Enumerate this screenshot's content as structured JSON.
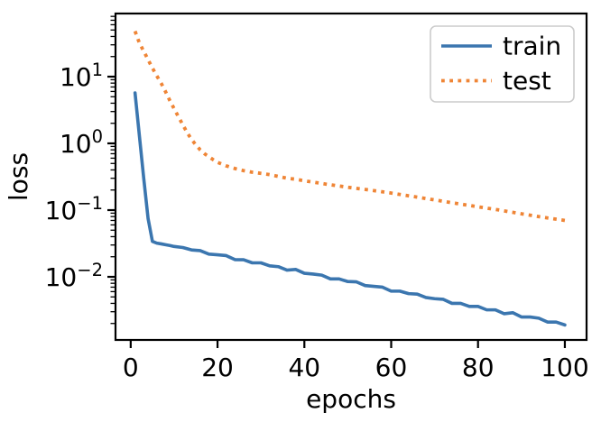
{
  "chart_data": {
    "type": "line",
    "title": "",
    "xlabel": "epochs",
    "ylabel": "loss",
    "y_scale": "log",
    "xlim": [
      -3.5,
      105
    ],
    "ylim_log10": [
      -2.946,
      1.946
    ],
    "grid": false,
    "x_tick_values": [
      0,
      20,
      40,
      60,
      80,
      100
    ],
    "y_ticks": [
      {
        "value": 10,
        "base": "10",
        "exp": "1"
      },
      {
        "value": 1,
        "base": "10",
        "exp": "0"
      },
      {
        "value": 0.1,
        "base": "10",
        "exp": "−1"
      },
      {
        "value": 0.01,
        "base": "10",
        "exp": "−2"
      }
    ],
    "legend_position": "upper right",
    "legend": [
      {
        "label": "train",
        "color": "#3b76af",
        "linestyle": "solid"
      },
      {
        "label": "test",
        "color": "#ef8536",
        "linestyle": "dotted"
      }
    ],
    "series": [
      {
        "name": "train",
        "color": "#3b76af",
        "linestyle": "solid",
        "x": [
          1,
          2,
          3,
          4,
          5,
          6,
          7,
          8,
          9,
          10,
          12,
          14,
          16,
          18,
          20,
          22,
          24,
          26,
          28,
          30,
          32,
          34,
          36,
          38,
          40,
          42,
          44,
          46,
          48,
          50,
          52,
          54,
          56,
          58,
          60,
          62,
          64,
          66,
          68,
          70,
          72,
          74,
          76,
          78,
          80,
          82,
          84,
          86,
          88,
          90,
          92,
          94,
          96,
          98,
          100
        ],
        "y": [
          5.7,
          1.3,
          0.3,
          0.075,
          0.034,
          0.032,
          0.0312,
          0.0303,
          0.0295,
          0.0285,
          0.0275,
          0.0253,
          0.0247,
          0.0219,
          0.0214,
          0.0208,
          0.0181,
          0.018,
          0.0162,
          0.0162,
          0.0146,
          0.0142,
          0.0126,
          0.0129,
          0.0113,
          0.011,
          0.0106,
          0.0093,
          0.0093,
          0.0085,
          0.0084,
          0.0074,
          0.0072,
          0.007,
          0.0061,
          0.0061,
          0.0056,
          0.0055,
          0.0049,
          0.0047,
          0.0046,
          0.004,
          0.004,
          0.0036,
          0.0036,
          0.0032,
          0.0032,
          0.0028,
          0.0029,
          0.0025,
          0.0025,
          0.0024,
          0.0021,
          0.0021,
          0.0019
        ]
      },
      {
        "name": "test",
        "color": "#ef8536",
        "linestyle": "dotted",
        "x": [
          1,
          2,
          3,
          4,
          5,
          6,
          7,
          8,
          9,
          10,
          11,
          12,
          13,
          14,
          15,
          16,
          17,
          18,
          19,
          20,
          22,
          24,
          26,
          28,
          30,
          32,
          34,
          36,
          38,
          40,
          45,
          50,
          55,
          60,
          65,
          70,
          75,
          80,
          85,
          90,
          95,
          100
        ],
        "y": [
          48,
          32,
          24,
          18,
          13.5,
          10.3,
          8.0,
          6.0,
          4.4,
          3.3,
          2.5,
          1.9,
          1.45,
          1.15,
          0.95,
          0.8,
          0.7,
          0.63,
          0.57,
          0.52,
          0.46,
          0.42,
          0.39,
          0.37,
          0.355,
          0.34,
          0.32,
          0.3,
          0.29,
          0.275,
          0.245,
          0.22,
          0.2,
          0.18,
          0.16,
          0.142,
          0.126,
          0.112,
          0.1,
          0.088,
          0.078,
          0.07
        ]
      }
    ]
  },
  "style_colors": {
    "spine": "#000000",
    "legend_border": "#cccccc",
    "background": "#ffffff"
  }
}
